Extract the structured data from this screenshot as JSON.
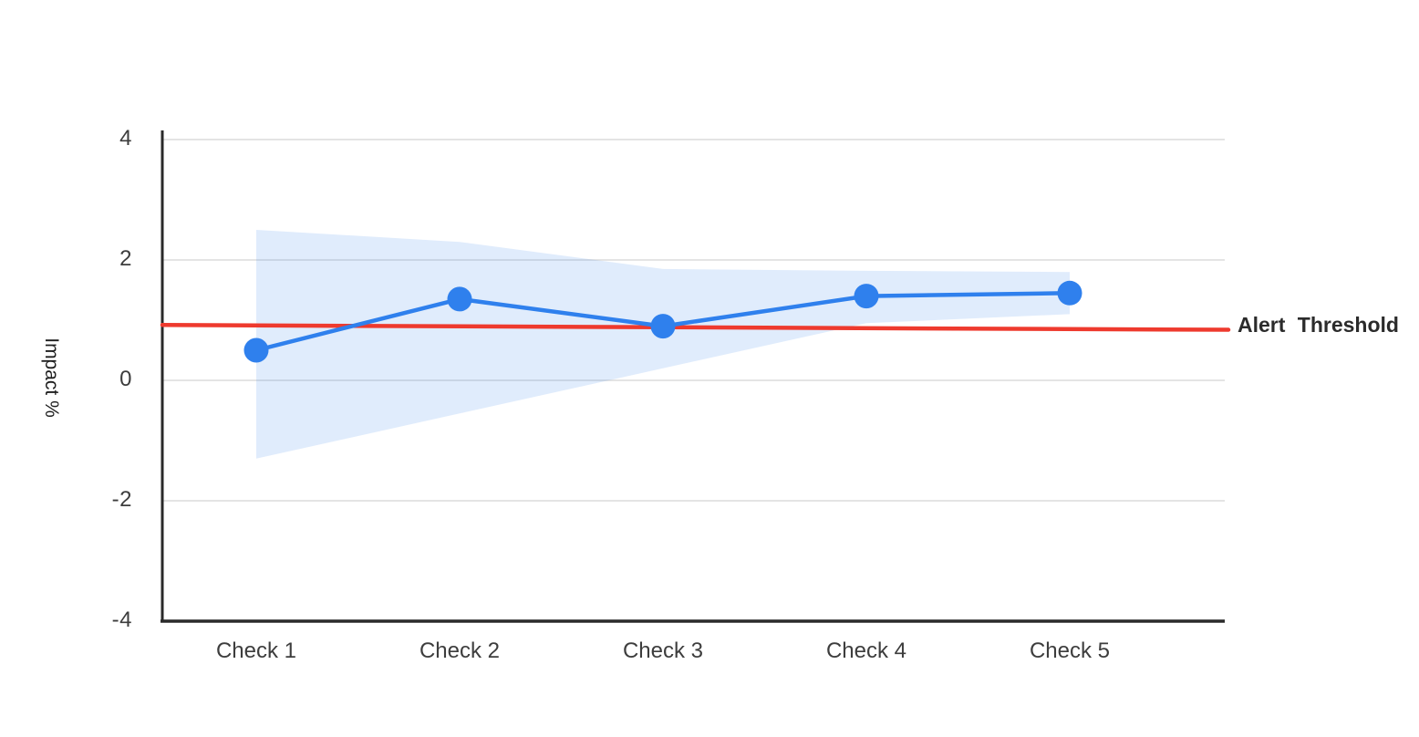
{
  "chart_data": {
    "type": "line",
    "title": "",
    "categories": [
      "Check 1",
      "Check 2",
      "Check 3",
      "Check 4",
      "Check 5"
    ],
    "series": [
      {
        "name": "Impact",
        "values": [
          0.5,
          1.35,
          0.9,
          1.4,
          1.45
        ]
      }
    ],
    "confidence_band": {
      "upper": [
        2.5,
        2.3,
        1.85,
        1.82,
        1.8
      ],
      "lower": [
        -1.3,
        -0.55,
        0.2,
        0.95,
        1.1
      ]
    },
    "threshold": {
      "label": "Alert Threshold",
      "start_value": 0.92,
      "end_value": 0.84
    },
    "xlabel": "",
    "ylabel": "Impact %",
    "ylim": [
      -4,
      4
    ],
    "yticks": [
      4,
      2,
      0,
      -2,
      -4
    ],
    "grid": true,
    "legend": "none",
    "colors": {
      "line": "#2f80ed",
      "marker": "#2f80ed",
      "band": "#2f80ed",
      "band_opacity": 0.15,
      "threshold": "#ee3a2e",
      "gridline": "#e4e4e4",
      "axis": "#2a2a2a",
      "tick_text": "#3d3d3d"
    }
  }
}
